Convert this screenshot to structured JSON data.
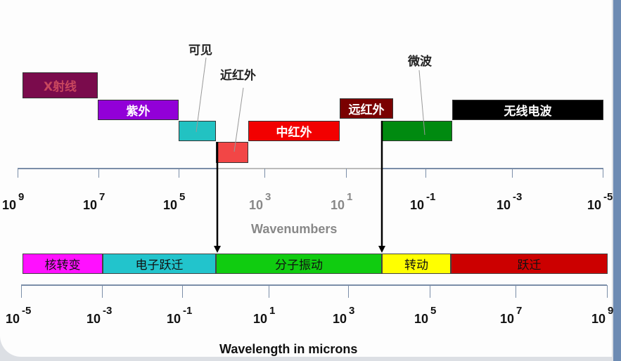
{
  "top_bands": [
    {
      "label": "X射线",
      "color": "#7a0b4c",
      "text_color": "#c8475e"
    },
    {
      "label": "紫外",
      "color": "#9200d8",
      "text_color": "#ffffff"
    },
    {
      "label": "",
      "color": "#22c2c2"
    },
    {
      "label": "",
      "color": "#f24646"
    },
    {
      "label": "中红外",
      "color": "#f20000",
      "text_color": "#ffffff"
    },
    {
      "label": "远红外",
      "color": "#7a0000",
      "text_color": "#ffffff"
    },
    {
      "label": "",
      "color": "#008a10"
    },
    {
      "label": "无线电波",
      "color": "#000000",
      "text_color": "#ffffff"
    }
  ],
  "callouts": {
    "visible": "可见",
    "near_ir": "近红外",
    "microwave": "微波"
  },
  "wavenumbers": {
    "title": "Wavenumbers",
    "ticks": [
      {
        "base": "10",
        "exp": "9"
      },
      {
        "base": "10",
        "exp": "7"
      },
      {
        "base": "10",
        "exp": "5"
      },
      {
        "base": "10",
        "exp": "3"
      },
      {
        "base": "10",
        "exp": "1"
      },
      {
        "base": "10",
        "exp": "-1"
      },
      {
        "base": "10",
        "exp": "-3"
      },
      {
        "base": "10",
        "exp": "-5"
      }
    ]
  },
  "bottom_bands": [
    {
      "label": "核转变",
      "color": "#ff10ff"
    },
    {
      "label": "电子跃迁",
      "color": "#22c4cc"
    },
    {
      "label": "分子振动",
      "color": "#10cc10"
    },
    {
      "label": "转动",
      "color": "#ffff00"
    },
    {
      "label": "跃迁",
      "color": "#cc0000"
    }
  ],
  "wavelength": {
    "title": "Wavelength in microns",
    "ticks": [
      {
        "base": "10",
        "exp": "-5"
      },
      {
        "base": "10",
        "exp": "-3"
      },
      {
        "base": "10",
        "exp": "-1"
      },
      {
        "base": "10",
        "exp": "1"
      },
      {
        "base": "10",
        "exp": "3"
      },
      {
        "base": "10",
        "exp": "5"
      },
      {
        "base": "10",
        "exp": "7"
      },
      {
        "base": "10",
        "exp": "9"
      }
    ]
  }
}
